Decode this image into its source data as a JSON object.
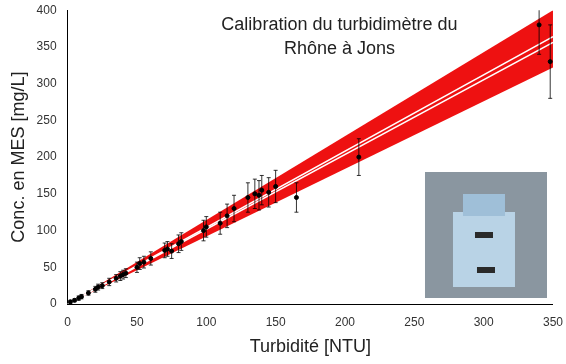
{
  "chart_data": {
    "type": "scatter",
    "title": [
      "Calibration du turbidimètre du",
      "Rhône à Jons"
    ],
    "x_label": "Turbidité [NTU]",
    "y_label": "Conc. en MES [mg/L]",
    "xlim": [
      0,
      350
    ],
    "xticks": [
      0,
      50,
      100,
      150,
      200,
      250,
      300,
      350
    ],
    "ylim": [
      0,
      400
    ],
    "yticks": [
      0,
      50,
      100,
      150,
      200,
      250,
      300,
      350,
      400
    ],
    "grid": false,
    "series": [
      {
        "type": "band",
        "color": "#ee1111",
        "x": [
          0,
          350
        ],
        "lower": [
          0,
          322
        ],
        "upper": [
          0,
          400
        ]
      },
      {
        "type": "line",
        "color": "#ffffff",
        "line_style": "solid",
        "x": [
          0,
          350
        ],
        "values": [
          0,
          356
        ]
      },
      {
        "type": "line",
        "color": "#ffffff",
        "line_style": "solid",
        "x": [
          0,
          350
        ],
        "values": [
          0,
          364
        ]
      },
      {
        "type": "scatter",
        "color": "#000000",
        "marker": "circle",
        "x": [
          2,
          5,
          8,
          10,
          15,
          20,
          22,
          25,
          30,
          35,
          38,
          40,
          42,
          50,
          52,
          55,
          60,
          70,
          72,
          75,
          80,
          82,
          98,
          100,
          110,
          115,
          120,
          130,
          135,
          138,
          140,
          145,
          150,
          165,
          210,
          340,
          348
        ],
        "values": [
          3,
          5,
          8,
          10,
          15,
          20,
          23,
          25,
          30,
          35,
          38,
          40,
          42,
          50,
          55,
          57,
          62,
          73,
          75,
          72,
          82,
          85,
          100,
          105,
          110,
          120,
          130,
          145,
          150,
          148,
          155,
          152,
          160,
          145,
          200,
          380,
          330
        ],
        "errors": [
          2,
          2,
          3,
          3,
          3,
          4,
          4,
          4,
          5,
          5,
          6,
          6,
          6,
          7,
          8,
          8,
          9,
          10,
          10,
          10,
          12,
          12,
          14,
          14,
          15,
          16,
          18,
          20,
          20,
          20,
          20,
          20,
          22,
          20,
          25,
          40,
          50
        ]
      }
    ]
  }
}
